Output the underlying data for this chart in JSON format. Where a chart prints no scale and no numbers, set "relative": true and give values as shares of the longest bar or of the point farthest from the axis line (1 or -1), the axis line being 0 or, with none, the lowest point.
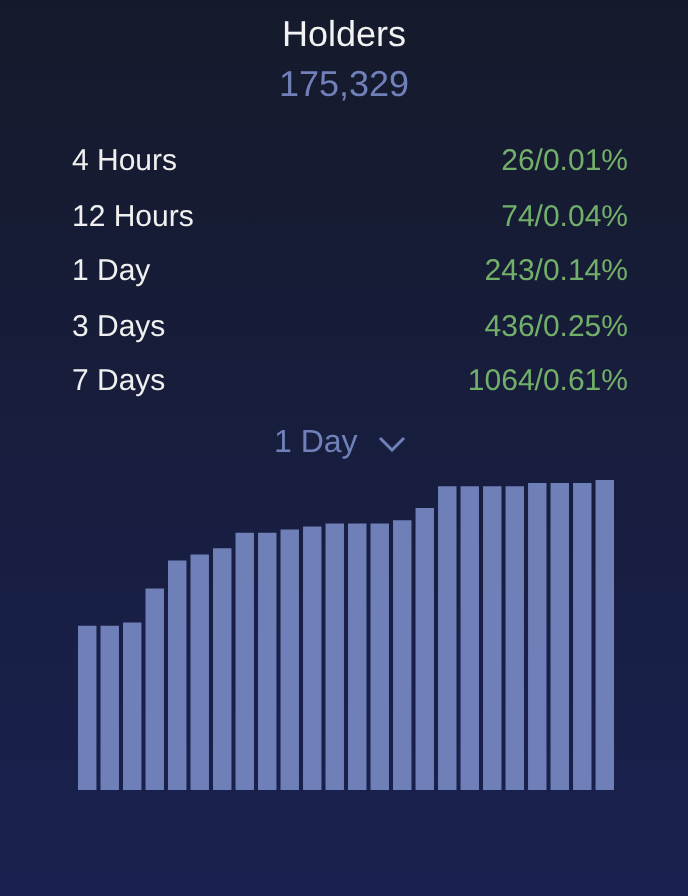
{
  "chart_data": {
    "type": "bar",
    "title": "Holders",
    "subtitle": "175,329",
    "annotations": [
      "4 Hours",
      "26/0.01%",
      "12 Hours",
      "74/0.04%",
      "1 Day",
      "243/0.14%",
      "3 Days",
      "436/0.25%",
      "7 Days",
      "1064/0.61%",
      "1 Day"
    ],
    "categories": [
      null,
      null,
      null,
      null,
      null,
      null,
      null,
      null,
      null,
      null,
      null,
      null,
      null,
      null,
      null,
      null,
      null,
      null,
      null,
      null,
      null,
      null,
      null,
      null
    ],
    "values": [
      0.53,
      0.53,
      0.54,
      0.65,
      0.74,
      0.76,
      0.78,
      0.83,
      0.83,
      0.84,
      0.85,
      0.86,
      0.86,
      0.86,
      0.87,
      0.91,
      0.98,
      0.98,
      0.98,
      0.98,
      0.99,
      0.99,
      0.99,
      1
    ],
    "color": "#6f7fb8",
    "relative": true
  }
}
